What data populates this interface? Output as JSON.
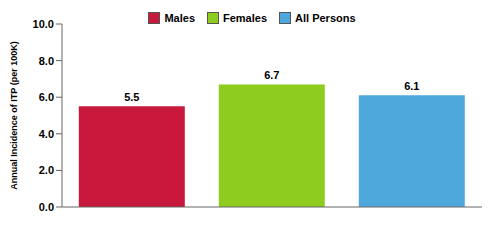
{
  "chart_data": {
    "type": "bar",
    "categories": [
      "Males",
      "Females",
      "All Persons"
    ],
    "values": [
      5.5,
      6.7,
      6.1
    ],
    "colors": [
      "#C8193C",
      "#8FCC20",
      "#4FA8DC"
    ],
    "ylabel": "Annual Incidence of ITP (per 100K)",
    "ylim": [
      0,
      10
    ],
    "yticks": [
      {
        "value": 0,
        "label": "0.0"
      },
      {
        "value": 2,
        "label": "2.0"
      },
      {
        "value": 4,
        "label": "4.0"
      },
      {
        "value": 6,
        "label": "6.0"
      },
      {
        "value": 8,
        "label": "8.0"
      },
      {
        "value": 10,
        "label": "10.0"
      }
    ],
    "grid": false,
    "legend": "top",
    "data_labels": true,
    "tick_labels": "y"
  }
}
